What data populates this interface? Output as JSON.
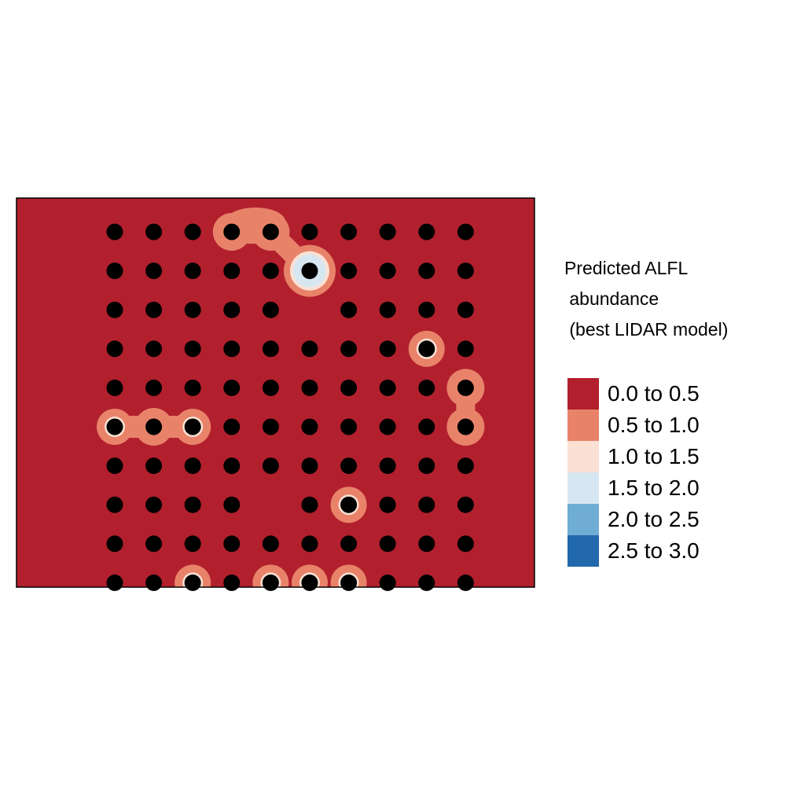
{
  "chart_data": {
    "type": "heatmap",
    "title": "",
    "legend": {
      "title_lines": [
        "Predicted ALFL",
        " abundance",
        " (best LIDAR model)"
      ],
      "placement": "right",
      "classes": [
        {
          "label": "0.0 to 0.5",
          "color": "#b2202d"
        },
        {
          "label": "0.5 to 1.0",
          "color": "#e8836a"
        },
        {
          "label": "1.0 to 1.5",
          "color": "#fbe1d4"
        },
        {
          "label": "1.5 to 2.0",
          "color": "#d7e7f1"
        },
        {
          "label": "2.0 to 2.5",
          "color": "#6fadd5"
        },
        {
          "label": "2.5 to 3.0",
          "color": "#2268ad"
        }
      ]
    },
    "grid": {
      "columns": 10,
      "rows": 10
    },
    "points": [
      {
        "col": 1,
        "row": 1
      },
      {
        "col": 2,
        "row": 1
      },
      {
        "col": 3,
        "row": 1
      },
      {
        "col": 4,
        "row": 1
      },
      {
        "col": 5,
        "row": 1
      },
      {
        "col": 6,
        "row": 1
      },
      {
        "col": 7,
        "row": 1
      },
      {
        "col": 8,
        "row": 1
      },
      {
        "col": 9,
        "row": 1
      },
      {
        "col": 10,
        "row": 1
      },
      {
        "col": 1,
        "row": 2
      },
      {
        "col": 2,
        "row": 2
      },
      {
        "col": 3,
        "row": 2
      },
      {
        "col": 4,
        "row": 2
      },
      {
        "col": 5,
        "row": 2
      },
      {
        "col": 6,
        "row": 2
      },
      {
        "col": 7,
        "row": 2
      },
      {
        "col": 8,
        "row": 2
      },
      {
        "col": 9,
        "row": 2
      },
      {
        "col": 10,
        "row": 2
      },
      {
        "col": 1,
        "row": 3
      },
      {
        "col": 2,
        "row": 3
      },
      {
        "col": 3,
        "row": 3
      },
      {
        "col": 4,
        "row": 3
      },
      {
        "col": 5,
        "row": 3
      },
      {
        "col": 7,
        "row": 3
      },
      {
        "col": 8,
        "row": 3
      },
      {
        "col": 9,
        "row": 3
      },
      {
        "col": 10,
        "row": 3
      },
      {
        "col": 1,
        "row": 4
      },
      {
        "col": 2,
        "row": 4
      },
      {
        "col": 3,
        "row": 4
      },
      {
        "col": 4,
        "row": 4
      },
      {
        "col": 5,
        "row": 4
      },
      {
        "col": 6,
        "row": 4
      },
      {
        "col": 7,
        "row": 4
      },
      {
        "col": 8,
        "row": 4
      },
      {
        "col": 9,
        "row": 4
      },
      {
        "col": 10,
        "row": 4
      },
      {
        "col": 1,
        "row": 5
      },
      {
        "col": 2,
        "row": 5
      },
      {
        "col": 3,
        "row": 5
      },
      {
        "col": 4,
        "row": 5
      },
      {
        "col": 5,
        "row": 5
      },
      {
        "col": 6,
        "row": 5
      },
      {
        "col": 7,
        "row": 5
      },
      {
        "col": 8,
        "row": 5
      },
      {
        "col": 9,
        "row": 5
      },
      {
        "col": 10,
        "row": 5
      },
      {
        "col": 1,
        "row": 6
      },
      {
        "col": 2,
        "row": 6
      },
      {
        "col": 3,
        "row": 6
      },
      {
        "col": 4,
        "row": 6
      },
      {
        "col": 5,
        "row": 6
      },
      {
        "col": 6,
        "row": 6
      },
      {
        "col": 7,
        "row": 6
      },
      {
        "col": 8,
        "row": 6
      },
      {
        "col": 9,
        "row": 6
      },
      {
        "col": 10,
        "row": 6
      },
      {
        "col": 1,
        "row": 7
      },
      {
        "col": 2,
        "row": 7
      },
      {
        "col": 3,
        "row": 7
      },
      {
        "col": 4,
        "row": 7
      },
      {
        "col": 5,
        "row": 7
      },
      {
        "col": 6,
        "row": 7
      },
      {
        "col": 7,
        "row": 7
      },
      {
        "col": 8,
        "row": 7
      },
      {
        "col": 9,
        "row": 7
      },
      {
        "col": 10,
        "row": 7
      },
      {
        "col": 1,
        "row": 8
      },
      {
        "col": 2,
        "row": 8
      },
      {
        "col": 3,
        "row": 8
      },
      {
        "col": 4,
        "row": 8
      },
      {
        "col": 6,
        "row": 8
      },
      {
        "col": 7,
        "row": 8
      },
      {
        "col": 8,
        "row": 8
      },
      {
        "col": 9,
        "row": 8
      },
      {
        "col": 10,
        "row": 8
      },
      {
        "col": 1,
        "row": 9
      },
      {
        "col": 2,
        "row": 9
      },
      {
        "col": 3,
        "row": 9
      },
      {
        "col": 4,
        "row": 9
      },
      {
        "col": 5,
        "row": 9
      },
      {
        "col": 6,
        "row": 9
      },
      {
        "col": 7,
        "row": 9
      },
      {
        "col": 8,
        "row": 9
      },
      {
        "col": 9,
        "row": 9
      },
      {
        "col": 10,
        "row": 9
      },
      {
        "col": 1,
        "row": 10
      },
      {
        "col": 2,
        "row": 10
      },
      {
        "col": 3,
        "row": 10
      },
      {
        "col": 4,
        "row": 10
      },
      {
        "col": 5,
        "row": 10
      },
      {
        "col": 6,
        "row": 10
      },
      {
        "col": 7,
        "row": 10
      },
      {
        "col": 8,
        "row": 10
      },
      {
        "col": 9,
        "row": 10
      },
      {
        "col": 10,
        "row": 10
      }
    ],
    "hotspots": [
      {
        "col": 4,
        "row": 1,
        "class": "0.5 to 1.0"
      },
      {
        "col": 5,
        "row": 1,
        "class": "0.5 to 1.0"
      },
      {
        "col": 6,
        "row": 2,
        "class": "1.5 to 2.0"
      },
      {
        "col": 9,
        "row": 4,
        "class": "1.0 to 1.5"
      },
      {
        "col": 10,
        "row": 5,
        "class": "0.5 to 1.0"
      },
      {
        "col": 10,
        "row": 6,
        "class": "0.5 to 1.0"
      },
      {
        "col": 1,
        "row": 6,
        "class": "1.0 to 1.5"
      },
      {
        "col": 2,
        "row": 6,
        "class": "0.5 to 1.0"
      },
      {
        "col": 3,
        "row": 6,
        "class": "1.0 to 1.5"
      },
      {
        "col": 7,
        "row": 8,
        "class": "1.0 to 1.5"
      },
      {
        "col": 3,
        "row": 10,
        "class": "1.0 to 1.5"
      },
      {
        "col": 5,
        "row": 10,
        "class": "1.0 to 1.5"
      },
      {
        "col": 6,
        "row": 10,
        "class": "1.0 to 1.5"
      },
      {
        "col": 7,
        "row": 10,
        "class": "1.0 to 1.5"
      }
    ]
  }
}
